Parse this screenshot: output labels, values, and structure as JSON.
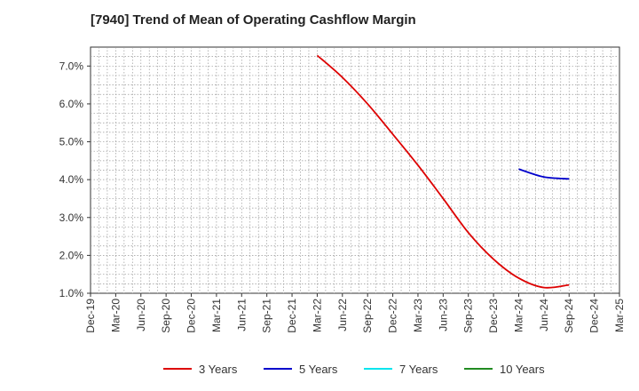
{
  "chart_data": {
    "type": "line",
    "title": "[7940]  Trend of Mean of Operating Cashflow Margin",
    "xlabel": "",
    "ylabel": "",
    "x_categories": [
      "Dec-19",
      "Mar-20",
      "Jun-20",
      "Sep-20",
      "Dec-20",
      "Mar-21",
      "Jun-21",
      "Sep-21",
      "Dec-21",
      "Mar-22",
      "Jun-22",
      "Sep-22",
      "Dec-22",
      "Mar-23",
      "Jun-23",
      "Sep-23",
      "Dec-23",
      "Mar-24",
      "Jun-24",
      "Sep-24",
      "Dec-24",
      "Mar-25"
    ],
    "y_ticks": [
      "1.0%",
      "2.0%",
      "3.0%",
      "4.0%",
      "5.0%",
      "6.0%",
      "7.0%"
    ],
    "ylim": [
      1.0,
      7.5
    ],
    "grid": true,
    "legend_position": "bottom",
    "series": [
      {
        "name": "3 Years",
        "color": "#dd0000",
        "points": [
          {
            "x": "Mar-22",
            "y": 7.28
          },
          {
            "x": "Jun-22",
            "y": 6.7
          },
          {
            "x": "Sep-22",
            "y": 6.0
          },
          {
            "x": "Dec-22",
            "y": 5.2
          },
          {
            "x": "Mar-23",
            "y": 4.38
          },
          {
            "x": "Jun-23",
            "y": 3.5
          },
          {
            "x": "Sep-23",
            "y": 2.6
          },
          {
            "x": "Dec-23",
            "y": 1.9
          },
          {
            "x": "Mar-24",
            "y": 1.4
          },
          {
            "x": "Jun-24",
            "y": 1.15
          },
          {
            "x": "Sep-24",
            "y": 1.22
          }
        ]
      },
      {
        "name": "5 Years",
        "color": "#0000cc",
        "points": [
          {
            "x": "Mar-24",
            "y": 4.28
          },
          {
            "x": "Jun-24",
            "y": 4.07
          },
          {
            "x": "Sep-24",
            "y": 4.02
          }
        ]
      },
      {
        "name": "7 Years",
        "color": "#00e5ee",
        "points": []
      },
      {
        "name": "10 Years",
        "color": "#228b22",
        "points": []
      }
    ]
  }
}
